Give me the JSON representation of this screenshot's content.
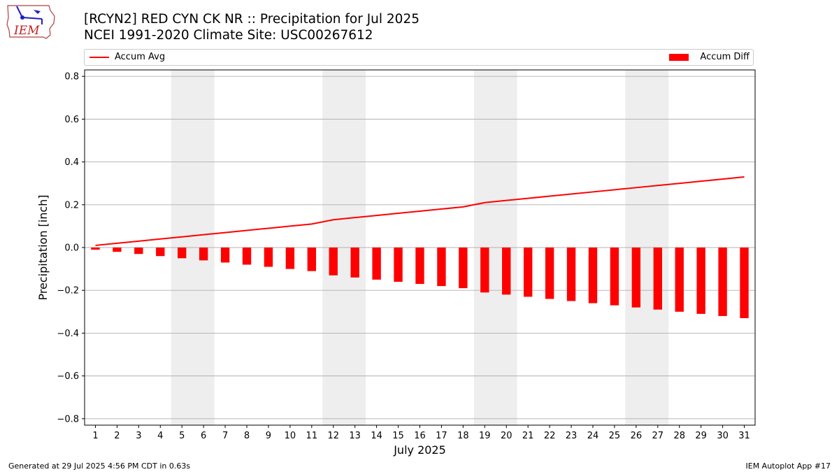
{
  "header": {
    "title": "[RCYN2] RED CYN CK NR :: Precipitation for Jul 2025",
    "subtitle": "NCEI 1991-2020 Climate Site: USC00267612",
    "logo_text": "IEM"
  },
  "legend": {
    "line_label": "Accum Avg",
    "bar_label": "Accum Diff"
  },
  "footer": {
    "left": "Generated at 29 Jul 2025 4:56 PM CDT in 0.63s",
    "right": "IEM Autoplot App #17"
  },
  "colors": {
    "series": "#ff0000",
    "weekend_band": "#eeeeee",
    "grid": "#b0b0b0"
  },
  "chart_data": {
    "type": "bar",
    "xlabel": "July 2025",
    "ylabel": "Precipitation [inch]",
    "ylim": [
      -0.83,
      0.83
    ],
    "yticks": [
      -0.8,
      -0.6,
      -0.4,
      -0.2,
      0.0,
      0.2,
      0.4,
      0.6,
      0.8
    ],
    "ytick_labels": [
      "−0.8",
      "−0.6",
      "−0.4",
      "−0.2",
      "0.0",
      "0.2",
      "0.4",
      "0.6",
      "0.8"
    ],
    "xlim": [
      0.5,
      31.5
    ],
    "categories": [
      1,
      2,
      3,
      4,
      5,
      6,
      7,
      8,
      9,
      10,
      11,
      12,
      13,
      14,
      15,
      16,
      17,
      18,
      19,
      20,
      21,
      22,
      23,
      24,
      25,
      26,
      27,
      28,
      29,
      30,
      31
    ],
    "grid": "horizontal",
    "weekend_bands": [
      [
        4.5,
        6.5
      ],
      [
        11.5,
        13.5
      ],
      [
        18.5,
        20.5
      ],
      [
        25.5,
        27.5
      ]
    ],
    "series": [
      {
        "name": "Accum Diff",
        "type": "bar",
        "values": [
          -0.01,
          -0.02,
          -0.03,
          -0.04,
          -0.05,
          -0.06,
          -0.07,
          -0.08,
          -0.09,
          -0.1,
          -0.11,
          -0.13,
          -0.14,
          -0.15,
          -0.16,
          -0.17,
          -0.18,
          -0.19,
          -0.21,
          -0.22,
          -0.23,
          -0.24,
          -0.25,
          -0.26,
          -0.27,
          -0.28,
          -0.29,
          -0.3,
          -0.31,
          -0.32,
          -0.33
        ]
      },
      {
        "name": "Accum Avg",
        "type": "line",
        "values": [
          0.01,
          0.02,
          0.03,
          0.04,
          0.05,
          0.06,
          0.07,
          0.08,
          0.09,
          0.1,
          0.11,
          0.13,
          0.14,
          0.15,
          0.16,
          0.17,
          0.18,
          0.19,
          0.21,
          0.22,
          0.23,
          0.24,
          0.25,
          0.26,
          0.27,
          0.28,
          0.29,
          0.3,
          0.31,
          0.32,
          0.33
        ]
      }
    ]
  }
}
